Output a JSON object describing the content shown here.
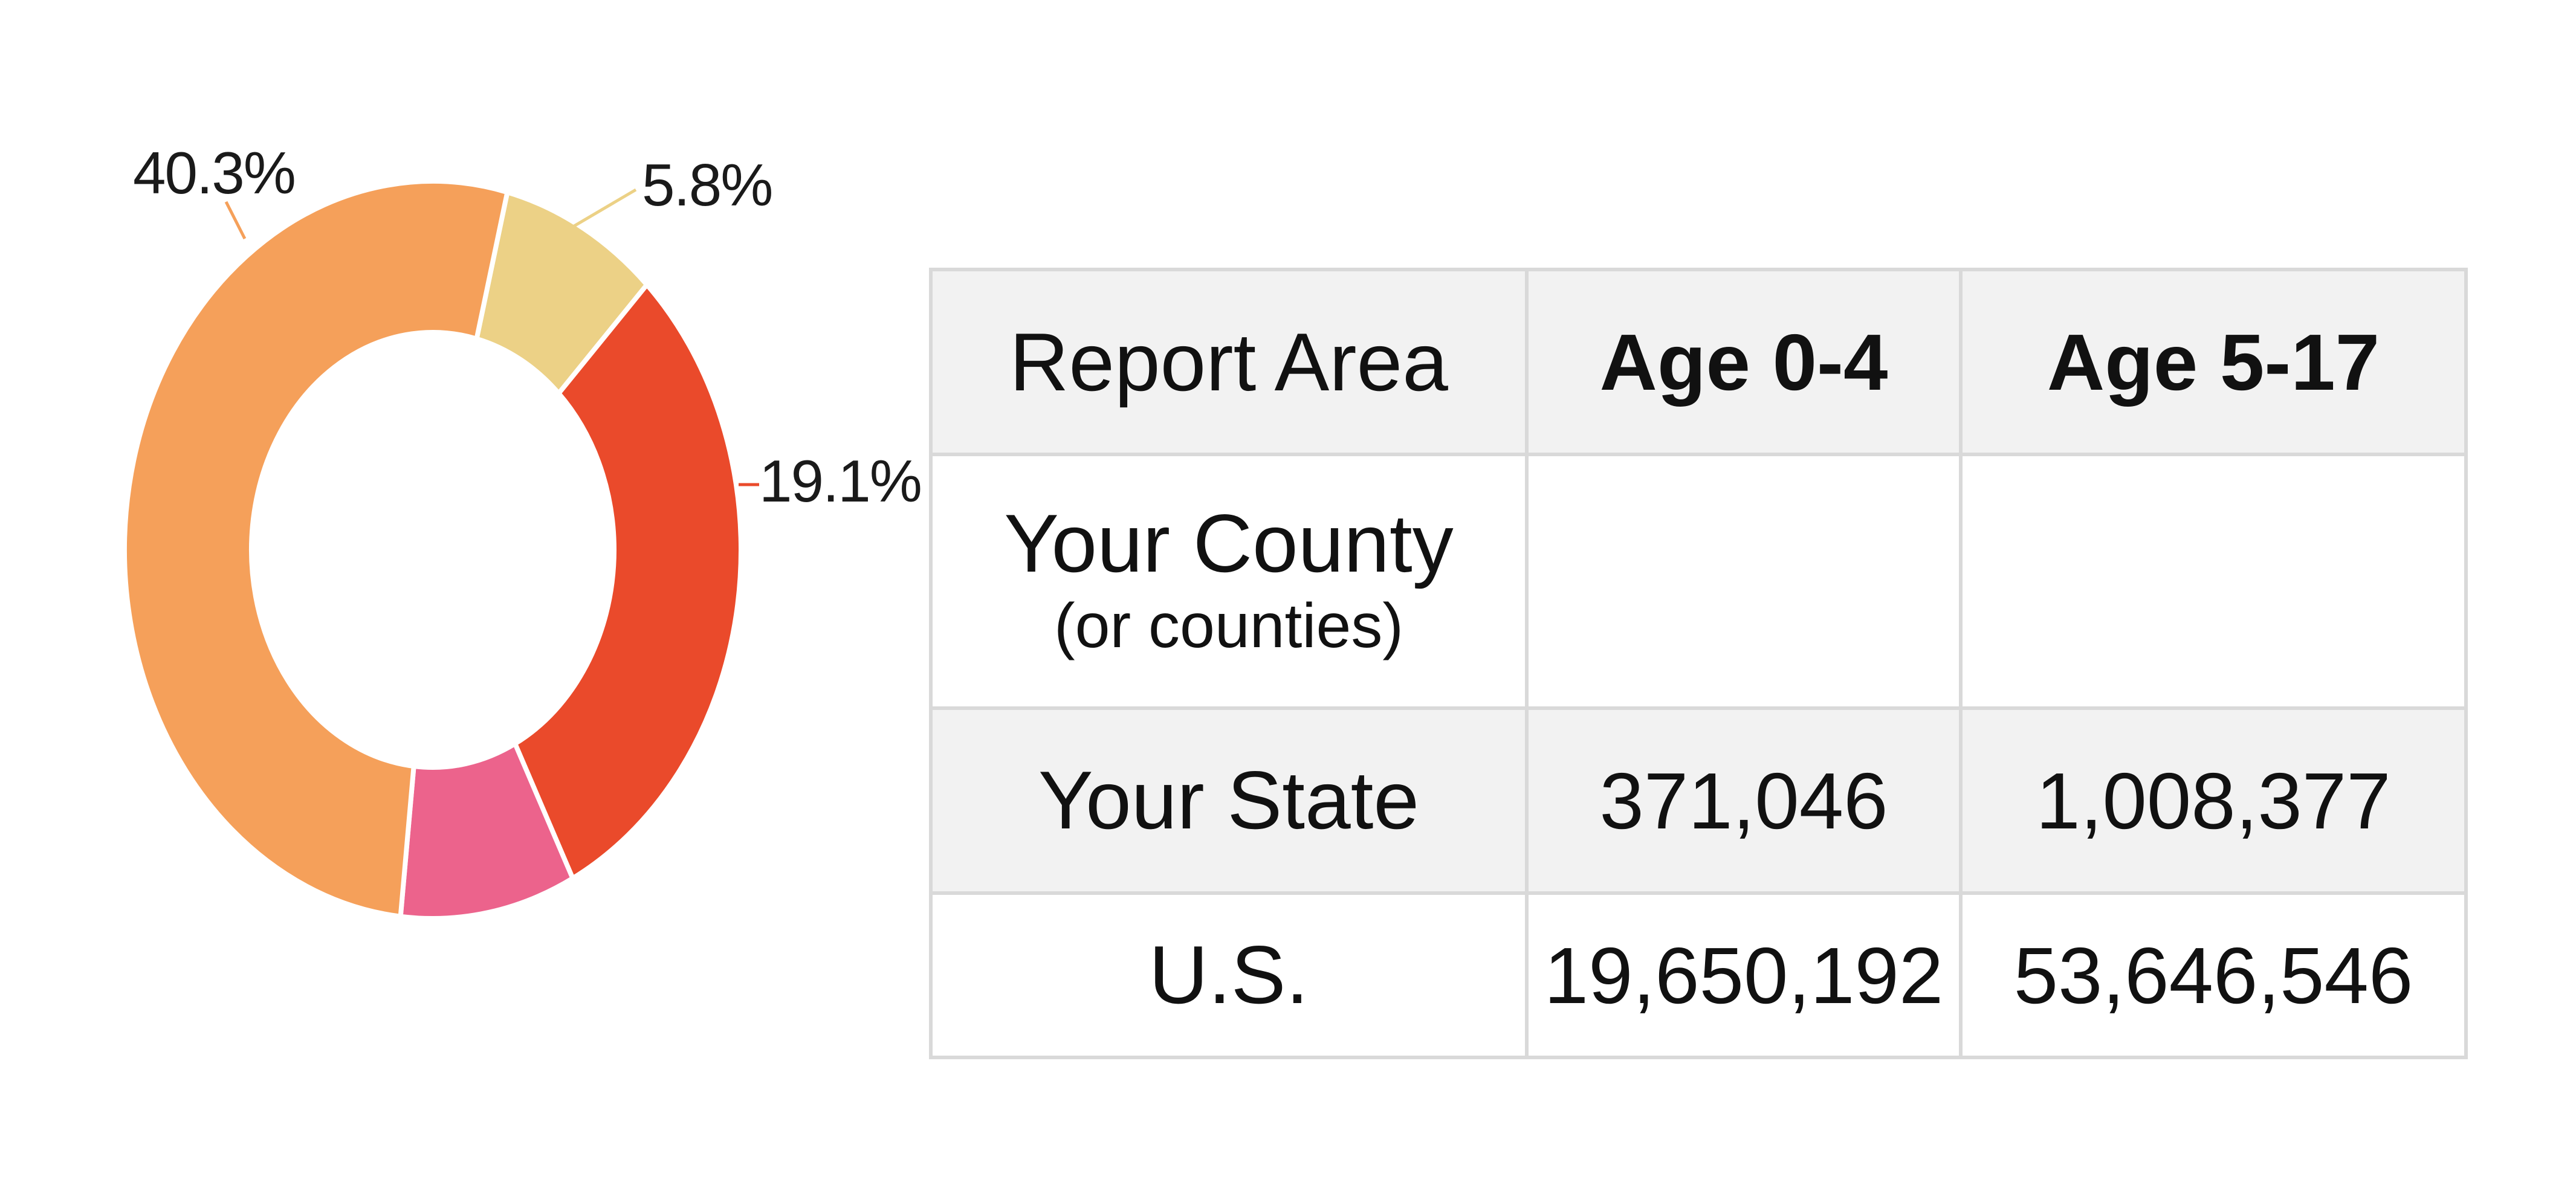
{
  "chart_data": {
    "type": "pie",
    "variant": "donut",
    "slices": [
      {
        "label": "5.8%",
        "value": 5.8,
        "color": "#ecd186"
      },
      {
        "label": "19.1%",
        "value": 19.1,
        "color": "#ea4a2b"
      },
      {
        "label": "",
        "value": 7.6,
        "color": "#ec638c"
      },
      {
        "label": "40.3%",
        "value": 40.3,
        "color": "#f5a05a"
      }
    ],
    "title": "",
    "legend": "none"
  },
  "table": {
    "headers": [
      "Report Area",
      "Age 0-4",
      "Age 5-17"
    ],
    "rows": [
      {
        "area": "Your County",
        "area_sub": "(or counties)",
        "age_0_4": "",
        "age_5_17": ""
      },
      {
        "area": "Your State",
        "area_sub": "",
        "age_0_4": "371,046",
        "age_5_17": "1,008,377"
      },
      {
        "area": "U.S.",
        "area_sub": "",
        "age_0_4": "19,650,192",
        "age_5_17": "53,646,546"
      }
    ]
  }
}
